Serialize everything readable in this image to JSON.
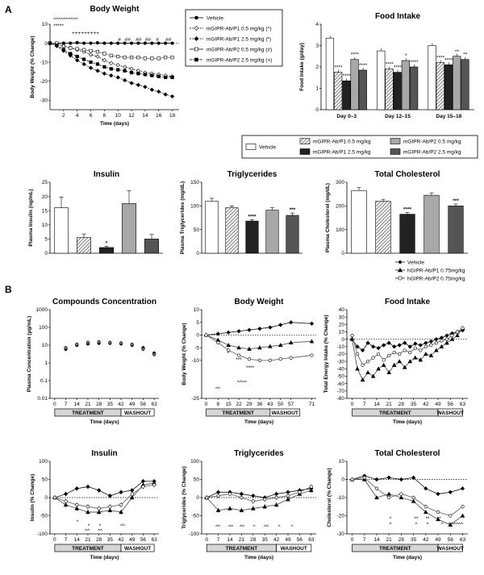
{
  "panel_labels": [
    "A",
    "B"
  ],
  "colors": {
    "dark": "#222222",
    "mid": "#555555",
    "light": "#a8a8a8",
    "hatch": "#777777"
  },
  "legend_A_line": [
    "Vehicle",
    "mGIPR-Ab/P1 0.5 mg/kg (^)",
    "mGIPR-Ab/P1 2.5 mg/kg (*)",
    "mGIPR-Ab/P2 0.5 mg/kg (#)",
    "mGIPR-Ab/P2 2.5 mg/kg (+)"
  ],
  "legend_A_bar": [
    "Vehicle",
    "mGIPR-Ab/P1 0.5 mg/kg",
    "mGIPR-Ab/P1 2.5 mg/kg",
    "mGIPR-Ab/P2 0.5 mg/kg",
    "mGIPR-Ab/P2 2.5 mg/kg"
  ],
  "legend_B": [
    "Vehicle",
    "hGIPR-Ab/P1 0.75mg/kg",
    "hGIPR-Ab/P2 0.75mg/kg"
  ],
  "treatment_label": "TREATMENT",
  "washout_label": "WASHOUT",
  "chart_data": [
    {
      "id": "A-bw",
      "type": "line",
      "title": "Body Weight",
      "xlabel": "Time (days)",
      "ylabel": "Body Weight (% Change)",
      "xlim": [
        0,
        19
      ],
      "ylim": [
        -35,
        10
      ],
      "xticks": [
        2,
        4,
        6,
        8,
        10,
        12,
        14,
        16,
        18
      ],
      "yticks": [
        -30,
        -20,
        -10,
        0,
        10
      ],
      "x": [
        0,
        1,
        2,
        3,
        4,
        5,
        6,
        7,
        8,
        9,
        10,
        11,
        12,
        13,
        14,
        15,
        16,
        17,
        18
      ],
      "series": [
        {
          "name": "Vehicle",
          "values": [
            0,
            0,
            0,
            0,
            0.3,
            0,
            0,
            0.2,
            0,
            0,
            0,
            0,
            0,
            0,
            0,
            0,
            0,
            0,
            0
          ]
        },
        {
          "name": "mGIPR-Ab/P1 0.5 mg/kg (^)",
          "values": [
            0,
            -0.3,
            -1.5,
            -2.5,
            -3.5,
            -4.5,
            -6,
            -7,
            -9,
            -10.5,
            -11.5,
            -12.5,
            -13.5,
            -14.5,
            -15.5,
            -16,
            -16.5,
            -17,
            -17.5
          ]
        },
        {
          "name": "mGIPR-Ab/P1 2.5 mg/kg (*)",
          "values": [
            0,
            -1.5,
            -4,
            -6.5,
            -9,
            -11,
            -13,
            -14.5,
            -16,
            -17,
            -18,
            -19.5,
            -21,
            -22,
            -23,
            -24.5,
            -25.5,
            -27,
            -28
          ]
        },
        {
          "name": "mGIPR-Ab/P2 0.5 mg/kg (#)",
          "values": [
            0,
            0,
            -1.5,
            -2.5,
            -3,
            -3.5,
            -4,
            -4.5,
            -5.5,
            -6.5,
            -7,
            -7.5,
            -7.5,
            -7.5,
            -8,
            -8,
            -8,
            -7.5,
            -7.5
          ]
        },
        {
          "name": "mGIPR-Ab/P2 2.5 mg/kg (+)",
          "values": [
            0,
            -1,
            -3.5,
            -5.5,
            -7,
            -8.5,
            -10,
            -11,
            -12.5,
            -13.5,
            -14,
            -14.5,
            -15.5,
            -16,
            -16.5,
            -17,
            -17.5,
            -18,
            -18
          ]
        }
      ],
      "annotations": [
        "^^^^^^^^^^",
        "*****",
        "+++++++++",
        "#",
        "##",
        "##",
        "##",
        "#",
        "##"
      ]
    },
    {
      "id": "A-food",
      "type": "bar",
      "title": "Food Intake",
      "ylabel": "Food Intake (g/day)",
      "ylim": [
        0,
        4
      ],
      "yticks": [
        0,
        1,
        2,
        3,
        4
      ],
      "categories": [
        "Day 0–3",
        "Day 12–15",
        "Day 15–18"
      ],
      "series": [
        {
          "name": "Vehicle",
          "values": [
            3.35,
            2.75,
            3.0
          ]
        },
        {
          "name": "mGIPR-Ab/P1 0.5 mg/kg",
          "values": [
            1.75,
            1.9,
            2.2
          ]
        },
        {
          "name": "mGIPR-Ab/P1 2.5 mg/kg",
          "values": [
            1.35,
            1.75,
            2.1
          ]
        },
        {
          "name": "mGIPR-Ab/P2 0.5 mg/kg",
          "values": [
            2.35,
            2.3,
            2.5
          ]
        },
        {
          "name": "mGIPR-Ab/P2 2.5 mg/kg",
          "values": [
            1.85,
            2.0,
            2.35
          ]
        }
      ],
      "annotations": [
        "****",
        "****",
        "****",
        "****",
        "****",
        "****",
        "*",
        "****",
        "****",
        "****",
        "**",
        "**"
      ]
    },
    {
      "id": "A-ins",
      "type": "bar",
      "title": "Insulin",
      "ylabel": "Plasma Insulin (ng/mL)",
      "ylim": [
        0,
        25
      ],
      "yticks": [
        0,
        5,
        10,
        15,
        20,
        25
      ],
      "categories": [
        "Vehicle",
        "mGIPR-Ab/P1 0.5 mg/kg",
        "mGIPR-Ab/P1 2.5 mg/kg",
        "mGIPR-Ab/P2 0.5 mg/kg",
        "mGIPR-Ab/P2 2.5 mg/kg"
      ],
      "values": [
        16,
        5.5,
        2,
        17.5,
        5
      ],
      "errors": [
        3.8,
        1.3,
        0.4,
        4.5,
        1.6
      ],
      "annotations": [
        "",
        "",
        "*",
        "",
        ""
      ]
    },
    {
      "id": "A-tg",
      "type": "bar",
      "title": "Triglycerides",
      "ylabel": "Plasma Triglycerides (mg/dL)",
      "ylim": [
        0,
        150
      ],
      "yticks": [
        0,
        50,
        100,
        150
      ],
      "categories": [
        "Vehicle",
        "mGIPR-Ab/P1 0.5 mg/kg",
        "mGIPR-Ab/P1 2.5 mg/kg",
        "mGIPR-Ab/P2 0.5 mg/kg",
        "mGIPR-Ab/P2 2.5 mg/kg"
      ],
      "values": [
        110,
        96,
        68,
        91,
        80
      ],
      "errors": [
        6,
        4,
        3,
        5,
        5
      ],
      "annotations": [
        "",
        "",
        "****",
        "",
        "***"
      ]
    },
    {
      "id": "A-tc",
      "type": "bar",
      "title": "Total Cholesterol",
      "ylabel": "Plasma Cholesterol (mg/dL)",
      "ylim": [
        0,
        300
      ],
      "yticks": [
        0,
        100,
        200,
        300
      ],
      "categories": [
        "Vehicle",
        "mGIPR-Ab/P1 0.5 mg/kg",
        "mGIPR-Ab/P1 2.5 mg/kg",
        "mGIPR-Ab/P2 0.5 mg/kg",
        "mGIPR-Ab/P2 2.5 mg/kg"
      ],
      "values": [
        265,
        220,
        165,
        245,
        200
      ],
      "errors": [
        12,
        8,
        8,
        10,
        8
      ],
      "annotations": [
        "",
        "",
        "****",
        "",
        "***"
      ]
    },
    {
      "id": "B-conc",
      "type": "scatter",
      "title": "Compounds Concentration",
      "xlabel": "Time (days)",
      "ylabel": "Plasma Concentration (μg/mL)",
      "xlim": [
        -3,
        66
      ],
      "ylim": [
        0.01,
        1000
      ],
      "yscale": "log",
      "xticks": [
        0,
        7,
        14,
        21,
        28,
        35,
        42,
        49,
        56,
        63
      ],
      "yticks": [
        0.01,
        0.1,
        1,
        10,
        100,
        1000
      ],
      "yticklabels": [
        "0.01",
        "0.1",
        "1",
        "10",
        "100",
        "1000"
      ],
      "x": [
        7,
        14,
        21,
        28,
        35,
        42,
        49,
        56,
        63
      ],
      "series": [
        {
          "name": "hGIPR-Ab/P1 0.75mg/kg",
          "values": [
            6,
            10,
            12,
            13,
            13,
            12,
            10,
            7,
            3.5
          ]
        },
        {
          "name": "hGIPR-Ab/P2 0.75mg/kg",
          "values": [
            7,
            11,
            14,
            15,
            14,
            13,
            11,
            6,
            3
          ]
        }
      ]
    },
    {
      "id": "B-bw",
      "type": "line",
      "title": "Body Weight",
      "xlabel": "Time (days)",
      "ylabel": "Body Weight (% Change)",
      "xlim": [
        -3,
        74
      ],
      "ylim": [
        -25,
        10
      ],
      "xticks": [
        0,
        8,
        15,
        22,
        29,
        36,
        43,
        50,
        57,
        71
      ],
      "yticks": [
        -25,
        -10,
        -5,
        0,
        5,
        10
      ],
      "x": [
        0,
        8,
        15,
        22,
        29,
        36,
        43,
        50,
        57,
        71
      ],
      "series": [
        {
          "name": "Vehicle",
          "values": [
            0,
            0.5,
            1,
            1.5,
            2,
            2.5,
            3,
            4,
            5,
            4.5
          ]
        },
        {
          "name": "hGIPR-Ab/P1 0.75mg/kg",
          "values": [
            0,
            -2,
            -4,
            -5,
            -5.5,
            -5,
            -4.5,
            -4,
            -3,
            -2.5
          ]
        },
        {
          "name": "hGIPR-Ab/P2 0.75mg/kg",
          "values": [
            0,
            -3,
            -6,
            -8,
            -9.5,
            -10,
            -10,
            -9.5,
            -9,
            -8
          ]
        }
      ],
      "annotations": [
        "^^",
        "*",
        "***",
        "****",
        "^^^^"
      ]
    },
    {
      "id": "B-food",
      "type": "line",
      "title": "Food Intake",
      "xlabel": "Time (days)",
      "ylabel": "Total Energy Intake (% Change)",
      "xlim": [
        -3,
        66
      ],
      "ylim": [
        -80,
        40
      ],
      "xticks": [
        0,
        7,
        14,
        21,
        28,
        35,
        42,
        49,
        56,
        63
      ],
      "yticks": [
        -80,
        -70,
        -60,
        -50,
        -40,
        -30,
        -20,
        -10,
        0,
        10,
        20,
        30,
        40
      ],
      "x": [
        0,
        3,
        6,
        9,
        12,
        15,
        18,
        21,
        24,
        27,
        30,
        33,
        36,
        39,
        42,
        45,
        48,
        51,
        54,
        57,
        60,
        63
      ],
      "series": [
        {
          "name": "Vehicle",
          "values": [
            0,
            -10,
            -15,
            -5,
            -10,
            -12,
            -8,
            -5,
            -10,
            -8,
            -5,
            -10,
            -6,
            -8,
            -5,
            -3,
            0,
            2,
            5,
            8,
            10,
            12
          ]
        },
        {
          "name": "hGIPR-Ab/P1 0.75mg/kg",
          "values": [
            0,
            -40,
            -55,
            -45,
            -50,
            -40,
            -35,
            -45,
            -35,
            -30,
            -38,
            -30,
            -25,
            -28,
            -20,
            -22,
            -15,
            -10,
            -5,
            0,
            5,
            15
          ]
        },
        {
          "name": "hGIPR-Ab/P2 0.75mg/kg",
          "values": [
            5,
            -20,
            -35,
            -30,
            -25,
            -20,
            -28,
            -22,
            -18,
            -20,
            -15,
            -18,
            -12,
            -15,
            -10,
            -8,
            -5,
            -2,
            0,
            5,
            10,
            15
          ]
        }
      ]
    },
    {
      "id": "B-ins",
      "type": "line",
      "title": "Insulin",
      "xlabel": "Time (days)",
      "ylabel": "Insulin (% Change)",
      "xlim": [
        -3,
        66
      ],
      "ylim": [
        -100,
        100
      ],
      "xticks": [
        0,
        7,
        14,
        21,
        28,
        35,
        42,
        49,
        56,
        63
      ],
      "yticks": [
        -100,
        -50,
        0,
        50,
        100
      ],
      "x": [
        0,
        7,
        14,
        21,
        28,
        35,
        42,
        49,
        56,
        63
      ],
      "series": [
        {
          "name": "Vehicle",
          "values": [
            0,
            10,
            25,
            30,
            20,
            5,
            15,
            20,
            45,
            45
          ]
        },
        {
          "name": "hGIPR-Ab/P1 0.75mg/kg",
          "values": [
            0,
            -20,
            -30,
            -40,
            -40,
            -35,
            -40,
            0,
            35,
            40
          ]
        },
        {
          "name": "hGIPR-Ab/P2 0.75mg/kg",
          "values": [
            0,
            -10,
            -20,
            -25,
            -30,
            -25,
            -20,
            10,
            30,
            35
          ]
        }
      ],
      "annotations": [
        "*",
        "*",
        "*",
        "^^",
        "^^",
        "^^"
      ]
    },
    {
      "id": "B-tg",
      "type": "line",
      "title": "Triglycerides",
      "xlabel": "Time (days)",
      "ylabel": "Triglycerides (% Change)",
      "xlim": [
        -3,
        66
      ],
      "ylim": [
        -100,
        100
      ],
      "xticks": [
        0,
        7,
        14,
        21,
        28,
        35,
        42,
        49,
        56,
        63
      ],
      "yticks": [
        -100,
        -50,
        0,
        50,
        100
      ],
      "x": [
        0,
        7,
        14,
        21,
        28,
        35,
        42,
        49,
        56,
        63
      ],
      "series": [
        {
          "name": "Vehicle",
          "values": [
            0,
            15,
            15,
            10,
            5,
            0,
            10,
            15,
            20,
            25
          ]
        },
        {
          "name": "hGIPR-Ab/P1 0.75mg/kg",
          "values": [
            0,
            -35,
            -30,
            -35,
            -30,
            -25,
            -20,
            -5,
            10,
            20
          ]
        },
        {
          "name": "hGIPR-Ab/P2 0.75mg/kg",
          "values": [
            0,
            5,
            10,
            0,
            -10,
            -5,
            0,
            5,
            15,
            30
          ]
        }
      ],
      "annotations": [
        "^^",
        "^^",
        "^^",
        "^",
        "^^",
        "^",
        "^"
      ]
    },
    {
      "id": "B-tc",
      "type": "line",
      "title": "Total Cholesterol",
      "xlabel": "Time (days)",
      "ylabel": "Cholesterol (% Change)",
      "xlim": [
        -3,
        66
      ],
      "ylim": [
        -30,
        10
      ],
      "xticks": [
        0,
        7,
        14,
        21,
        28,
        35,
        42,
        49,
        56,
        63
      ],
      "yticks": [
        -30,
        -20,
        -10,
        0,
        10
      ],
      "x": [
        0,
        7,
        14,
        21,
        28,
        35,
        42,
        49,
        56,
        63
      ],
      "series": [
        {
          "name": "Vehicle",
          "values": [
            0,
            2,
            0,
            1,
            0,
            1,
            -5,
            -8,
            -7,
            -5
          ]
        },
        {
          "name": "hGIPR-Ab/P1 0.75mg/kg",
          "values": [
            0,
            0,
            -10,
            -8,
            -10,
            -12,
            -18,
            -22,
            -25,
            -20
          ]
        },
        {
          "name": "hGIPR-Ab/P2 0.75mg/kg",
          "values": [
            0,
            1,
            -5,
            -10,
            -8,
            -10,
            -15,
            -18,
            -20,
            -15
          ]
        }
      ],
      "annotations": [
        "*",
        "**",
        "**",
        "**",
        "^",
        "^",
        "^",
        "^",
        "^^^^^^"
      ]
    }
  ]
}
